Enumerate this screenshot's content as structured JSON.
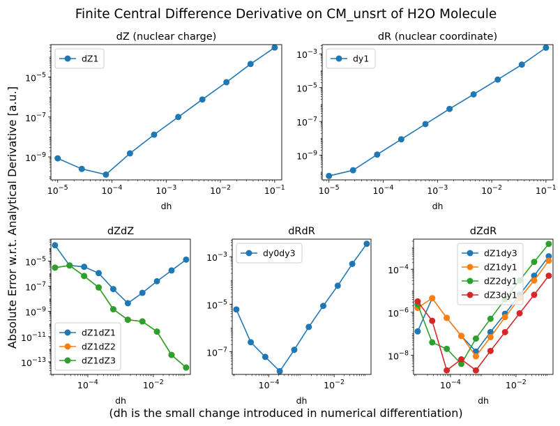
{
  "figure": {
    "title": "Finite Central Difference Derivative on CM_unsrt of H2O Molecule",
    "ylabel": "Absolute Error w.r.t. Analytical Derivative [a.u.]",
    "caption": "(dh is the small change introduced in numerical differentiation)"
  },
  "colors": {
    "blue": "#1f77b4",
    "orange": "#ff7f0e",
    "green": "#2ca02c",
    "red": "#d62728"
  },
  "chart_data": [
    {
      "type": "line",
      "title": "dZ (nuclear charge)",
      "xlabel": "dh",
      "xscale": "log",
      "yscale": "log",
      "xlim": [
        7.5e-06,
        0.135
      ],
      "ylim": [
        7.07e-11,
        0.00042
      ],
      "xticks": [
        {
          "v": 1e-05,
          "b": "10",
          "e": "−5"
        },
        {
          "v": 0.0001,
          "b": "10",
          "e": "−4"
        },
        {
          "v": 0.001,
          "b": "10",
          "e": "−3"
        },
        {
          "v": 0.01,
          "b": "10",
          "e": "−2"
        },
        {
          "v": 0.1,
          "b": "10",
          "e": "−1"
        }
      ],
      "yticks": [
        {
          "v": 1e-09,
          "b": "10",
          "e": "−9"
        },
        {
          "v": 1e-07,
          "b": "10",
          "e": "−7"
        },
        {
          "v": 1e-05,
          "b": "10",
          "e": "−5"
        }
      ],
      "legend": "upper left",
      "x": [
        1e-05,
        2.78e-05,
        7.74e-05,
        0.000215,
        0.000599,
        0.00167,
        0.00464,
        0.0129,
        0.0359,
        0.1
      ],
      "series": [
        {
          "name": "dZ1",
          "color": "#1f77b4",
          "y": [
            8.5e-10,
            2.5e-10,
            1.3e-10,
            1.5e-09,
            1.3e-08,
            1e-07,
            7.5e-07,
            5.5e-06,
            4.5e-05,
            0.0003
          ]
        }
      ]
    },
    {
      "type": "line",
      "title": "dR (nuclear coordinate)",
      "xlabel": "dh",
      "xscale": "log",
      "yscale": "log",
      "xlim": [
        7.5e-06,
        0.135
      ],
      "ylim": [
        3.5e-11,
        0.0035
      ],
      "xticks": [
        {
          "v": 1e-05,
          "b": "10",
          "e": "−5"
        },
        {
          "v": 0.0001,
          "b": "10",
          "e": "−4"
        },
        {
          "v": 0.001,
          "b": "10",
          "e": "−3"
        },
        {
          "v": 0.01,
          "b": "10",
          "e": "−2"
        },
        {
          "v": 0.1,
          "b": "10",
          "e": "−1"
        }
      ],
      "yticks": [
        {
          "v": 1e-09,
          "b": "10",
          "e": "−9"
        },
        {
          "v": 1e-07,
          "b": "10",
          "e": "−7"
        },
        {
          "v": 1e-05,
          "b": "10",
          "e": "−5"
        },
        {
          "v": 0.001,
          "b": "10",
          "e": "−3"
        }
      ],
      "legend": "upper left",
      "x": [
        1e-05,
        2.78e-05,
        7.74e-05,
        0.000215,
        0.000599,
        0.00167,
        0.00464,
        0.0129,
        0.0359,
        0.1
      ],
      "series": [
        {
          "name": "dy1",
          "color": "#1f77b4",
          "y": [
            6e-11,
            1.3e-10,
            1.1e-09,
            8.8e-09,
            7e-08,
            5.5e-07,
            4e-06,
            3e-05,
            0.00023,
            0.0023
          ]
        }
      ]
    },
    {
      "type": "line",
      "title": "dZdZ",
      "xlabel": "dh",
      "xscale": "log",
      "yscale": "log",
      "xlim": [
        7.5e-06,
        0.135
      ],
      "ylim": [
        1e-14,
        0.00055
      ],
      "xticks": [
        {
          "v": 0.0001,
          "b": "10",
          "e": "−4"
        },
        {
          "v": 0.01,
          "b": "10",
          "e": "−2"
        }
      ],
      "yticks": [
        {
          "v": 1e-13,
          "b": "10",
          "e": "−13"
        },
        {
          "v": 1e-11,
          "b": "10",
          "e": "−11"
        },
        {
          "v": 1e-09,
          "b": "10",
          "e": "−9"
        },
        {
          "v": 1e-07,
          "b": "10",
          "e": "−7"
        },
        {
          "v": 1e-05,
          "b": "10",
          "e": "−5"
        }
      ],
      "legend": "lower left",
      "x": [
        1e-05,
        2.78e-05,
        7.74e-05,
        0.000215,
        0.000599,
        0.00167,
        0.00464,
        0.0129,
        0.0359,
        0.1
      ],
      "series": [
        {
          "name": "dZ1dZ1",
          "color": "#1f77b4",
          "y": [
            0.00018,
            4.5e-06,
            3.5e-06,
            1.1e-06,
            6e-08,
            4.5e-09,
            3e-08,
            2.5e-07,
            1.8e-06,
            1.3e-05
          ]
        },
        {
          "name": "dZ1dZ2",
          "color": "#ff7f0e",
          "y": [
            3e-06,
            4.5e-06,
            6.5e-07,
            8e-08,
            1.5e-09,
            2.2e-10,
            1.6e-10,
            2.5e-11,
            3.5e-13,
            3.5e-14
          ]
        },
        {
          "name": "dZ1dZ3",
          "color": "#2ca02c",
          "y": [
            3e-06,
            4.5e-06,
            6.5e-07,
            8e-08,
            1.5e-09,
            2.2e-10,
            1.6e-10,
            2.5e-11,
            3.5e-13,
            3.5e-14
          ]
        }
      ]
    },
    {
      "type": "line",
      "title": "dRdR",
      "xlabel": "dh",
      "xscale": "log",
      "yscale": "log",
      "xlim": [
        7.5e-06,
        0.135
      ],
      "ylim": [
        1.1e-08,
        0.0055
      ],
      "xticks": [
        {
          "v": 0.0001,
          "b": "10",
          "e": "−4"
        },
        {
          "v": 0.01,
          "b": "10",
          "e": "−2"
        }
      ],
      "yticks": [
        {
          "v": 1e-07,
          "b": "10",
          "e": "−7"
        },
        {
          "v": 1e-05,
          "b": "10",
          "e": "−5"
        },
        {
          "v": 0.001,
          "b": "10",
          "e": "−3"
        }
      ],
      "legend": "upper left",
      "x": [
        1e-05,
        2.78e-05,
        7.74e-05,
        0.000215,
        0.000599,
        0.00167,
        0.00464,
        0.0129,
        0.0359,
        0.1
      ],
      "series": [
        {
          "name": "dy0dy3",
          "color": "#1f77b4",
          "y": [
            6e-06,
            2.5e-07,
            6e-08,
            1.5e-08,
            1.2e-07,
            1.1e-06,
            8.5e-06,
            6e-05,
            0.0005,
            0.0035
          ]
        }
      ]
    },
    {
      "type": "line",
      "title": "dZdR",
      "xlabel": "dh",
      "xscale": "log",
      "yscale": "log",
      "xlim": [
        7.5e-06,
        0.135
      ],
      "ylim": [
        1.3e-09,
        0.0025
      ],
      "xticks": [
        {
          "v": 0.0001,
          "b": "10",
          "e": "−4"
        },
        {
          "v": 0.01,
          "b": "10",
          "e": "−2"
        }
      ],
      "yticks": [
        {
          "v": 1e-08,
          "b": "10",
          "e": "−8"
        },
        {
          "v": 1e-06,
          "b": "10",
          "e": "−6"
        },
        {
          "v": 0.0001,
          "b": "10",
          "e": "−4"
        }
      ],
      "legend": "upper center",
      "x": [
        1e-05,
        2.78e-05,
        7.74e-05,
        0.000215,
        0.000599,
        0.00167,
        0.00464,
        0.0129,
        0.0359,
        0.1
      ],
      "series": [
        {
          "name": "dZ1dy3",
          "color": "#1f77b4",
          "y": [
            1.3e-07,
            4.5e-06,
            5.5e-07,
            8e-08,
            1.5e-08,
            1.2e-07,
            8.5e-07,
            6.5e-06,
            5e-05,
            0.0004
          ]
        },
        {
          "name": "dZ1dy1",
          "color": "#ff7f0e",
          "y": [
            1.6e-06,
            4.5e-06,
            5.5e-07,
            8e-08,
            9e-09,
            7e-08,
            6e-07,
            4.5e-06,
            3e-05,
            0.00025
          ]
        },
        {
          "name": "dZ2dy1",
          "color": "#2ca02c",
          "y": [
            2.3e-06,
            4e-08,
            2e-08,
            4e-09,
            6e-08,
            5e-07,
            4e-06,
            3e-05,
            0.00022,
            0.0015
          ]
        },
        {
          "name": "dZ3dy1",
          "color": "#d62728",
          "y": [
            3.2e-06,
            4e-07,
            2e-09,
            6.5e-09,
            2e-09,
            1.6e-08,
            1.2e-07,
            9e-07,
            6.5e-06,
            5e-05
          ]
        }
      ]
    }
  ]
}
